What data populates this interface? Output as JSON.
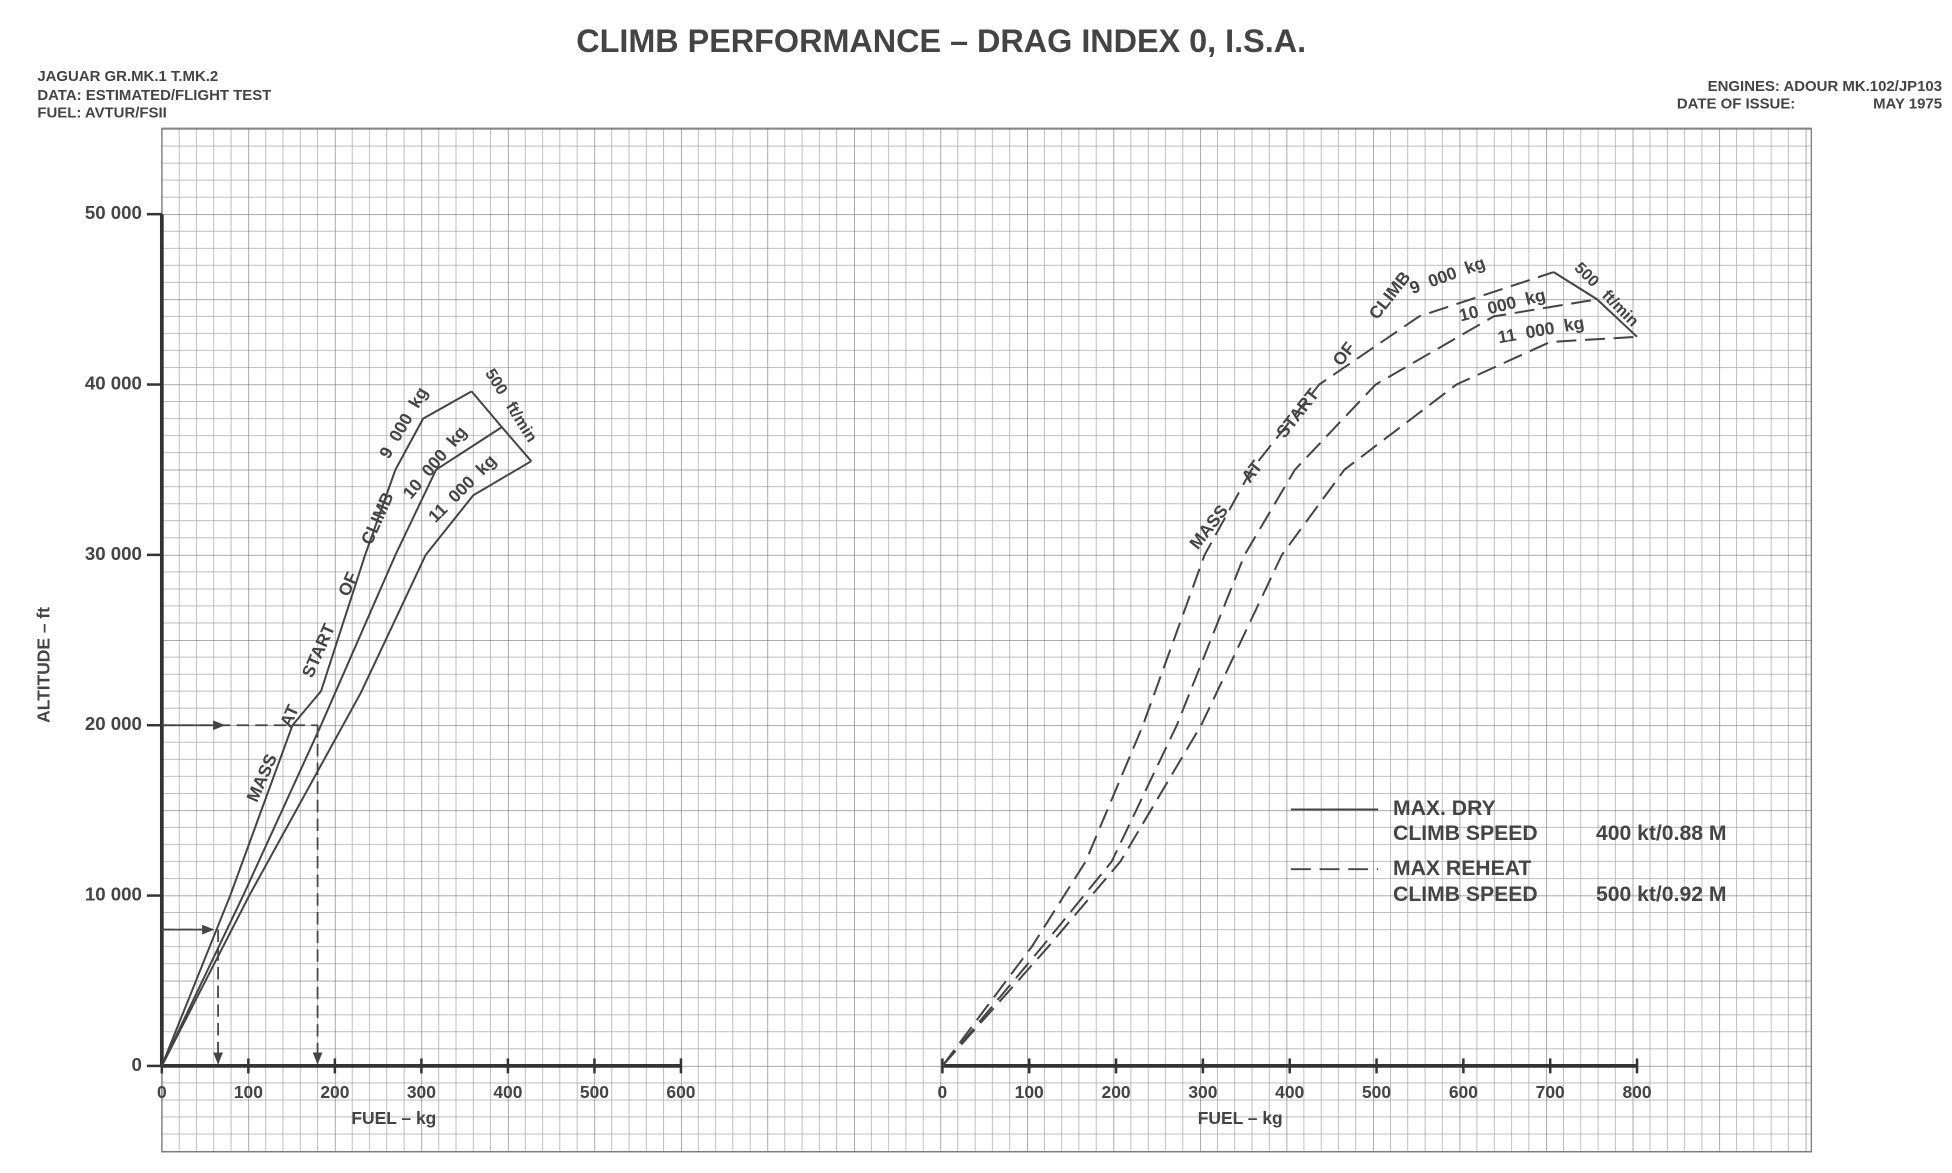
{
  "title": "CLIMB PERFORMANCE – DRAG INDEX 0, I.S.A.",
  "notes_left": [
    "JAGUAR GR.MK.1 T.MK.2",
    "DATA: ESTIMATED/FLIGHT TEST",
    "FUEL: AVTUR/FSII"
  ],
  "engines": "ENGINES: ADOUR MK.102/JP103",
  "date_label": "DATE OF ISSUE:",
  "date": "MAY 1975",
  "ylabel": "ALTITUDE – ft",
  "legend": [
    {
      "name": "MAX. DRY",
      "speed_label": "CLIMB SPEED",
      "speed": "400 kt/0.88 M",
      "dashed": false
    },
    {
      "name": "MAX REHEAT",
      "speed_label": "CLIMB SPEED",
      "speed": "500 kt/0.92 M",
      "dashed": true
    }
  ],
  "chart_data": [
    {
      "type": "line",
      "xlabel": "FUEL – kg",
      "dashed": false,
      "color": "#444",
      "xlim": [
        0,
        600
      ],
      "xticks": [
        0,
        100,
        200,
        300,
        400,
        500,
        600
      ],
      "ylim": [
        0,
        50000
      ],
      "yticks": [
        0,
        {
          "value": 10000,
          "label": "10 000"
        },
        {
          "value": 20000,
          "label": "20 000"
        },
        {
          "value": 30000,
          "label": "30 000"
        },
        {
          "value": 40000,
          "label": "40 000"
        },
        {
          "value": 50000,
          "label": "50 000"
        }
      ],
      "mass_label": "MASS AT START OF CLIMB",
      "boundary_label": "500 ft/min",
      "series": [
        {
          "name": "9 000 kg",
          "x": [
            0,
            79,
            151,
            184,
            235,
            270,
            302,
            358
          ],
          "values": [
            0,
            10000,
            20000,
            22000,
            30000,
            35000,
            38000,
            39600
          ]
        },
        {
          "name": "10 000 kg",
          "x": [
            0,
            94,
            184,
            270,
            317,
            393
          ],
          "values": [
            0,
            10000,
            20000,
            30000,
            35000,
            37500
          ]
        },
        {
          "name": "11 000 kg",
          "x": [
            0,
            101,
            230,
            305,
            360,
            427
          ],
          "values": [
            0,
            10000,
            21900,
            30000,
            33500,
            35500
          ]
        }
      ],
      "examples": [
        {
          "altitude": 20000,
          "fuel": 180
        },
        {
          "altitude": 8000,
          "fuel": 65
        }
      ]
    },
    {
      "type": "line",
      "xlabel": "FUEL – kg",
      "dashed": true,
      "color": "#444",
      "xlim": [
        0,
        800
      ],
      "xticks": [
        0,
        100,
        200,
        300,
        400,
        500,
        600,
        700,
        800
      ],
      "ylim": [
        0,
        50000
      ],
      "mass_label": "MASS AT START OF CLIMB",
      "boundary_label": "500 ft/min",
      "series": [
        {
          "name": "9 000 kg",
          "x": [
            0,
            103,
            165,
            231,
            302,
            356,
            434,
            549,
            704
          ],
          "values": [
            0,
            7000,
            12000,
            20000,
            30000,
            35000,
            40000,
            44000,
            46600
          ]
        },
        {
          "name": "10 000 kg",
          "x": [
            0,
            115,
            195,
            270,
            348,
            406,
            499,
            635,
            754
          ],
          "values": [
            0,
            7000,
            12000,
            20000,
            30000,
            35000,
            40000,
            44000,
            45000
          ]
        },
        {
          "name": "11 000 kg",
          "x": [
            0,
            122,
            205,
            298,
            391,
            463,
            592,
            700,
            800
          ],
          "values": [
            0,
            7000,
            12000,
            20000,
            30000,
            35000,
            40000,
            42500,
            42800
          ]
        }
      ]
    }
  ]
}
